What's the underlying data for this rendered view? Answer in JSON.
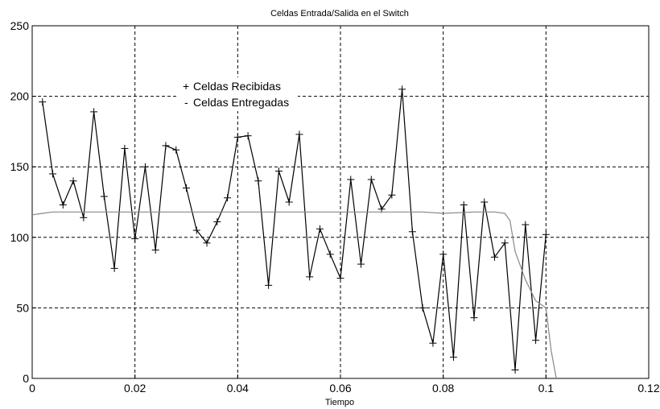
{
  "chart_data": {
    "type": "line",
    "title": "Celdas Entrada/Salida en el Switch",
    "xlabel": "Tiempo",
    "ylabel": "",
    "xlim": [
      0,
      0.12
    ],
    "ylim": [
      0,
      250
    ],
    "xticks": [
      0,
      0.02,
      0.04,
      0.06,
      0.08,
      0.1,
      0.12
    ],
    "xtick_labels": [
      "0",
      "0.02",
      "0.04",
      "0.06",
      "0.08",
      "0.1",
      "0.12"
    ],
    "yticks": [
      0,
      50,
      100,
      150,
      200,
      250
    ],
    "ytick_labels": [
      "0",
      "50",
      "100",
      "150",
      "200",
      "250"
    ],
    "grid": true,
    "legend_position": "upper-left-inside",
    "legend": [
      {
        "symbol": "+",
        "label": "Celdas Recibidas"
      },
      {
        "symbol": "-",
        "label": "Celdas Entregadas"
      }
    ],
    "series": [
      {
        "name": "Celdas Recibidas",
        "style": "line-plus",
        "color": "#000000",
        "x": [
          0.002,
          0.004,
          0.006,
          0.008,
          0.01,
          0.012,
          0.014,
          0.016,
          0.018,
          0.02,
          0.022,
          0.024,
          0.026,
          0.028,
          0.03,
          0.032,
          0.034,
          0.036,
          0.038,
          0.04,
          0.042,
          0.044,
          0.046,
          0.048,
          0.05,
          0.052,
          0.054,
          0.056,
          0.058,
          0.06,
          0.062,
          0.064,
          0.066,
          0.068,
          0.07,
          0.072,
          0.074,
          0.076,
          0.078,
          0.08,
          0.082,
          0.084,
          0.086,
          0.088,
          0.09,
          0.092,
          0.094,
          0.096,
          0.098,
          0.1
        ],
        "y": [
          196,
          145,
          123,
          140,
          114,
          189,
          129,
          78,
          163,
          99,
          150,
          91,
          165,
          162,
          135,
          105,
          96,
          111,
          128,
          171,
          172,
          140,
          66,
          147,
          125,
          173,
          72,
          106,
          88,
          71,
          141,
          81,
          141,
          120,
          130,
          205,
          104,
          50,
          25,
          88,
          15,
          123,
          43,
          125,
          86,
          96,
          6,
          109,
          27,
          102
        ]
      },
      {
        "name": "Celdas Entregadas",
        "style": "line",
        "color": "#888888",
        "x": [
          0.0,
          0.002,
          0.004,
          0.01,
          0.02,
          0.03,
          0.04,
          0.05,
          0.06,
          0.07,
          0.076,
          0.08,
          0.086,
          0.09,
          0.092,
          0.093,
          0.094,
          0.096,
          0.098,
          0.1,
          0.101,
          0.102
        ],
        "y": [
          116,
          117,
          118,
          118,
          118,
          118,
          118,
          118,
          118,
          118,
          118,
          117,
          118,
          118,
          117,
          112,
          90,
          70,
          55,
          50,
          20,
          0
        ]
      }
    ]
  }
}
